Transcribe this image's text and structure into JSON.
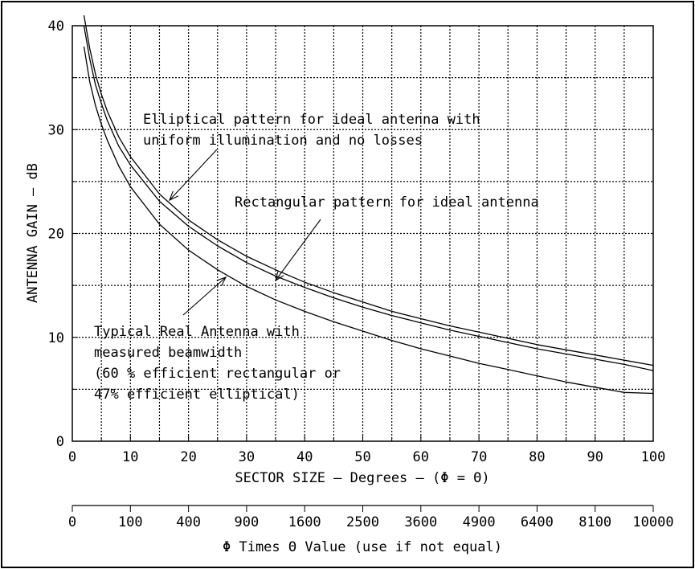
{
  "chart_data": {
    "type": "line",
    "xlabel": "SECTOR SIZE  –  Degrees  – (Φ = Θ)",
    "ylabel": "ANTENNA GAIN  – dB",
    "xlim": [
      0,
      100
    ],
    "ylim": [
      0,
      40
    ],
    "x_ticks": [
      "0",
      "10",
      "20",
      "30",
      "40",
      "50",
      "60",
      "70",
      "80",
      "90",
      "100"
    ],
    "y_ticks": [
      "0",
      "10",
      "20",
      "30",
      "40"
    ],
    "grid": true,
    "series": [
      {
        "x": [
          2,
          3,
          4,
          5,
          6,
          8,
          10,
          15,
          20,
          25,
          30,
          35,
          40,
          45,
          50,
          55,
          60,
          65,
          70,
          75,
          80,
          85,
          90,
          95,
          100
        ],
        "values": [
          41.0,
          37.8,
          35.3,
          33.4,
          31.8,
          29.3,
          27.4,
          23.8,
          21.3,
          19.4,
          17.8,
          16.5,
          15.3,
          14.3,
          13.4,
          12.5,
          11.8,
          11.1,
          10.5,
          9.9,
          9.3,
          8.8,
          8.3,
          7.8,
          7.3
        ]
      },
      {
        "x": [
          2,
          3,
          4,
          5,
          6,
          8,
          10,
          15,
          20,
          25,
          30,
          35,
          40,
          45,
          50,
          55,
          60,
          65,
          70,
          75,
          80,
          85,
          90,
          95,
          100
        ],
        "values": [
          40.0,
          36.8,
          34.3,
          32.5,
          30.9,
          28.4,
          26.6,
          23.1,
          20.7,
          18.8,
          17.2,
          15.9,
          14.8,
          13.8,
          12.9,
          12.1,
          11.4,
          10.7,
          10.1,
          9.5,
          8.9,
          8.4,
          7.9,
          7.4,
          6.8
        ]
      },
      {
        "x": [
          2,
          3,
          4,
          5,
          6,
          8,
          10,
          15,
          20,
          25,
          30,
          35,
          40,
          45,
          50,
          55,
          60,
          65,
          70,
          75,
          80,
          85,
          90,
          95,
          100
        ],
        "values": [
          38.0,
          34.6,
          32.3,
          30.5,
          29.0,
          26.5,
          24.5,
          20.9,
          18.4,
          16.5,
          14.9,
          13.6,
          12.5,
          11.5,
          10.6,
          9.7,
          8.9,
          8.2,
          7.5,
          6.9,
          6.3,
          5.7,
          5.2,
          4.7,
          4.6
        ]
      }
    ],
    "annotations": [
      {
        "lines": [
          "Elliptical pattern for ideal antenna with",
          "uniform illumination and no losses"
        ]
      },
      {
        "lines": [
          "Rectangular pattern for ideal antenna"
        ]
      },
      {
        "lines": [
          "Typical Real Antenna with",
          "measured beamwidth",
          "(60 % efficient rectangular or",
          "47%  efficient elliptical)"
        ]
      }
    ],
    "secondary_axis": {
      "label": "Φ Times Θ Value (use if not equal)",
      "ticks": [
        "0",
        "100",
        "400",
        "900",
        "1600",
        "2500",
        "3600",
        "4900",
        "6400",
        "8100",
        "10000"
      ]
    }
  }
}
